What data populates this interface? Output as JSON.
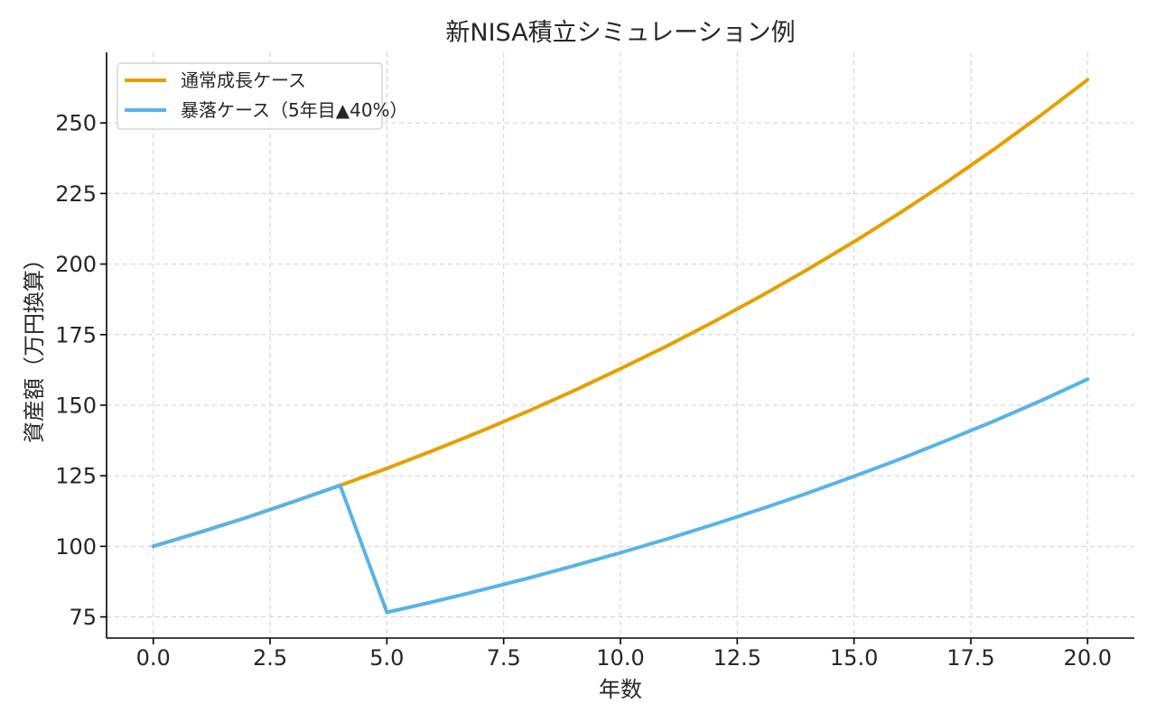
{
  "chart_data": {
    "type": "line",
    "title": "新NISA積立シミュレーション例",
    "xlabel": "年数",
    "ylabel": "資産額（万円換算）",
    "xlim": [
      -1,
      21
    ],
    "ylim": [
      67.5,
      275
    ],
    "xticks": [
      0.0,
      2.5,
      5.0,
      7.5,
      10.0,
      12.5,
      15.0,
      17.5,
      20.0
    ],
    "xtick_labels": [
      "0.0",
      "2.5",
      "5.0",
      "7.5",
      "10.0",
      "12.5",
      "15.0",
      "17.5",
      "20.0"
    ],
    "yticks": [
      75,
      100,
      125,
      150,
      175,
      200,
      225,
      250
    ],
    "ytick_labels": [
      "75",
      "100",
      "125",
      "150",
      "175",
      "200",
      "225",
      "250"
    ],
    "grid": true,
    "legend_position": "top-left",
    "series": [
      {
        "name": "通常成長ケース",
        "color": "#E69F00",
        "x": [
          0,
          1,
          2,
          3,
          4,
          5,
          6,
          7,
          8,
          9,
          10,
          11,
          12,
          13,
          14,
          15,
          16,
          17,
          18,
          19,
          20
        ],
        "y": [
          100,
          105,
          110.2,
          115.8,
          121.6,
          127.6,
          134,
          140.7,
          147.7,
          155.1,
          162.9,
          171,
          179.6,
          188.6,
          198,
          207.9,
          218.3,
          229.2,
          240.7,
          252.7,
          265.3
        ]
      },
      {
        "name": "暴落ケース（5年目▲40%）",
        "color": "#56B4E9",
        "x": [
          0,
          1,
          2,
          3,
          4,
          5,
          6,
          7,
          8,
          9,
          10,
          11,
          12,
          13,
          14,
          15,
          16,
          17,
          18,
          19,
          20
        ],
        "y": [
          100,
          105,
          110.2,
          115.8,
          121.6,
          76.6,
          80.4,
          84.4,
          88.6,
          93.1,
          97.7,
          102.6,
          107.8,
          113.2,
          118.8,
          124.8,
          131,
          137.6,
          144.4,
          151.6,
          159.2
        ]
      }
    ]
  }
}
